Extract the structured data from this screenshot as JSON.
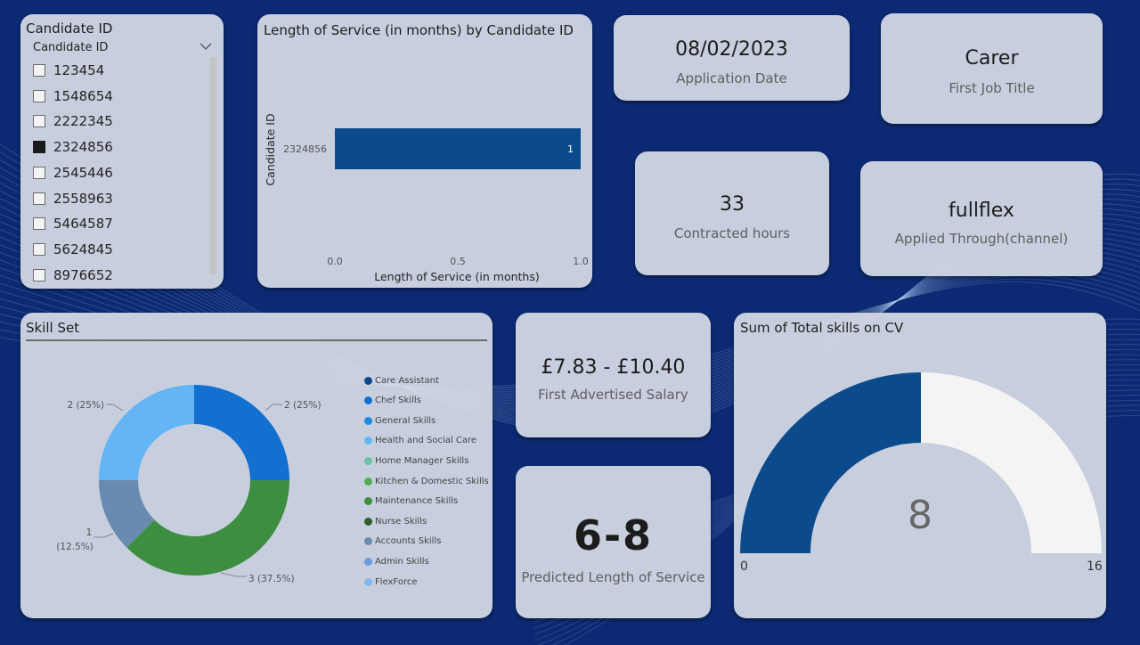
{
  "slicer": {
    "title": "Candidate ID",
    "header": "Candidate ID",
    "items": [
      {
        "label": "123454",
        "checked": false
      },
      {
        "label": "1548654",
        "checked": false
      },
      {
        "label": "2222345",
        "checked": false
      },
      {
        "label": "2324856",
        "checked": true
      },
      {
        "label": "2545446",
        "checked": false
      },
      {
        "label": "2558963",
        "checked": false
      },
      {
        "label": "5464587",
        "checked": false
      },
      {
        "label": "5624845",
        "checked": false
      },
      {
        "label": "8976652",
        "checked": false
      }
    ]
  },
  "bar_chart": {
    "title": "Length of Service (in months) by Candidate ID",
    "ylabel": "Candidate ID",
    "xlabel": "Length of Service (in months)",
    "category": "2324856",
    "value_label": "1",
    "ticks": [
      "0.0",
      "0.5",
      "1.0"
    ]
  },
  "kpis": {
    "application_date": {
      "value": "08/02/2023",
      "label": "Application Date"
    },
    "first_job_title": {
      "value": "Carer",
      "label": "First Job Title"
    },
    "contracted_hours": {
      "value": "33",
      "label": "Contracted hours"
    },
    "applied_through": {
      "value": "fullflex",
      "label": "Applied Through(channel)"
    },
    "salary": {
      "value": "£7.83 - £10.40",
      "label": "First Advertised Salary"
    },
    "predicted_los": {
      "value": "6-8",
      "label": "Predicted Length of Service"
    }
  },
  "donut": {
    "title": "Skill Set",
    "legend": [
      {
        "label": "Care Assistant",
        "color": "#0b4a8b"
      },
      {
        "label": "Chef Skills",
        "color": "#1170d0"
      },
      {
        "label": "General Skills",
        "color": "#1e88e5"
      },
      {
        "label": "Health and Social Care",
        "color": "#64b5f6"
      },
      {
        "label": "Home Manager Skills",
        "color": "#70c1a3"
      },
      {
        "label": "Kitchen & Domestic Skills",
        "color": "#4caf50"
      },
      {
        "label": "Maintenance Skills",
        "color": "#3e8e41"
      },
      {
        "label": "Nurse Skills",
        "color": "#2e5e2e"
      },
      {
        "label": "Accounts Skills",
        "color": "#6a8bb0"
      },
      {
        "label": "Admin Skills",
        "color": "#6b9be0"
      },
      {
        "label": "FlexForce",
        "color": "#82b8ef"
      }
    ],
    "labels": {
      "chef": "2 (25%)",
      "maintenance": "3 (37.5%)",
      "accounts_count": "1",
      "accounts_pct": "(12.5%)",
      "health": "2 (25%)"
    }
  },
  "gauge": {
    "title": "Sum of Total skills on CV",
    "value_text": "8",
    "min_label": "0",
    "max_label": "16"
  },
  "chart_data": [
    {
      "type": "bar",
      "title": "Length of Service (in months) by Candidate ID",
      "categories": [
        "2324856"
      ],
      "values": [
        1
      ],
      "xlabel": "Length of Service (in months)",
      "ylabel": "Candidate ID",
      "xlim": [
        0,
        1
      ]
    },
    {
      "type": "pie",
      "title": "Skill Set",
      "categories": [
        "Chef Skills",
        "Maintenance Skills",
        "Accounts Skills",
        "Health and Social Care"
      ],
      "values": [
        2,
        3,
        1,
        2
      ],
      "colors": [
        "#1170d0",
        "#3e8e41",
        "#6a8bb0",
        "#64b5f6"
      ]
    },
    {
      "type": "gauge",
      "title": "Sum of Total skills on CV",
      "value": 8,
      "min": 0,
      "max": 16
    }
  ]
}
